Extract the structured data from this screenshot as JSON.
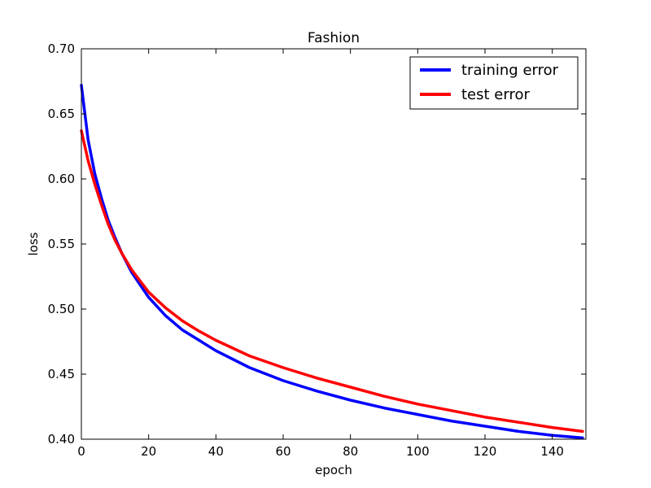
{
  "chart_data": {
    "type": "line",
    "title": "Fashion",
    "xlabel": "epoch",
    "ylabel": "loss",
    "xlim": [
      0,
      150
    ],
    "ylim": [
      0.4,
      0.7
    ],
    "xticks": [
      0,
      20,
      40,
      60,
      80,
      100,
      120,
      140
    ],
    "yticks": [
      0.4,
      0.45,
      0.5,
      0.55,
      0.6,
      0.65,
      0.7
    ],
    "ytick_labels": [
      "0.40",
      "0.45",
      "0.50",
      "0.55",
      "0.60",
      "0.65",
      "0.70"
    ],
    "grid": false,
    "legend_position": "top-right",
    "series": [
      {
        "name": "training error",
        "color": "#0000ff",
        "x": [
          0,
          2,
          4,
          6,
          8,
          10,
          12,
          15,
          20,
          25,
          30,
          35,
          40,
          50,
          60,
          70,
          80,
          90,
          100,
          110,
          120,
          130,
          140,
          149
        ],
        "y": [
          0.672,
          0.63,
          0.604,
          0.585,
          0.568,
          0.555,
          0.543,
          0.528,
          0.509,
          0.495,
          0.484,
          0.476,
          0.468,
          0.455,
          0.445,
          0.437,
          0.43,
          0.424,
          0.419,
          0.414,
          0.41,
          0.406,
          0.403,
          0.401
        ]
      },
      {
        "name": "test error",
        "color": "#ff0000",
        "x": [
          0,
          2,
          4,
          6,
          8,
          10,
          12,
          15,
          20,
          25,
          30,
          35,
          40,
          50,
          60,
          70,
          80,
          90,
          100,
          110,
          120,
          130,
          140,
          149
        ],
        "y": [
          0.637,
          0.614,
          0.596,
          0.58,
          0.565,
          0.553,
          0.543,
          0.53,
          0.513,
          0.501,
          0.491,
          0.483,
          0.476,
          0.464,
          0.455,
          0.447,
          0.44,
          0.433,
          0.427,
          0.422,
          0.417,
          0.413,
          0.409,
          0.406
        ]
      }
    ]
  }
}
